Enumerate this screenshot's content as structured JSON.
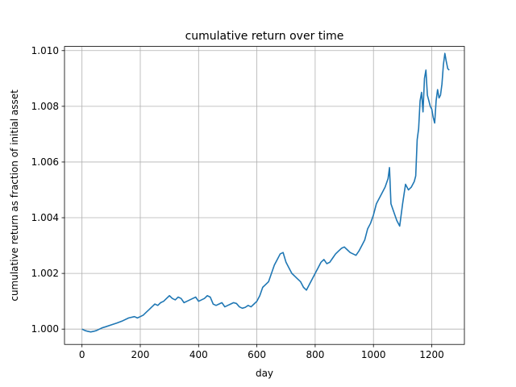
{
  "chart_data": {
    "type": "line",
    "title": "cumulative return over time",
    "xlabel": "day",
    "ylabel": "cumulative return as fraction of initial asset",
    "xlim": [
      -60,
      1312
    ],
    "ylim": [
      0.99945,
      1.01015
    ],
    "xticks": [
      0,
      200,
      400,
      600,
      800,
      1000,
      1200
    ],
    "yticks": [
      1.0,
      1.002,
      1.004,
      1.006,
      1.008,
      1.01
    ],
    "xtick_labels": [
      "0",
      "200",
      "400",
      "600",
      "800",
      "1000",
      "1200"
    ],
    "ytick_labels": [
      "1.000",
      "1.002",
      "1.004",
      "1.006",
      "1.008",
      "1.010"
    ],
    "grid": true,
    "series": [
      {
        "color": "#1f77b4",
        "x": [
          0,
          10,
          20,
          30,
          40,
          50,
          60,
          70,
          80,
          100,
          120,
          140,
          160,
          180,
          190,
          200,
          210,
          220,
          230,
          240,
          250,
          260,
          270,
          280,
          290,
          300,
          310,
          320,
          330,
          340,
          350,
          360,
          370,
          380,
          390,
          400,
          410,
          420,
          430,
          440,
          450,
          460,
          470,
          480,
          490,
          500,
          510,
          520,
          530,
          540,
          550,
          560,
          570,
          580,
          590,
          600,
          610,
          620,
          630,
          640,
          650,
          660,
          670,
          680,
          690,
          700,
          710,
          720,
          730,
          740,
          750,
          760,
          770,
          780,
          790,
          800,
          810,
          820,
          830,
          840,
          850,
          860,
          870,
          880,
          890,
          900,
          910,
          920,
          930,
          940,
          950,
          960,
          970,
          980,
          990,
          1000,
          1010,
          1020,
          1030,
          1040,
          1050,
          1055,
          1060,
          1070,
          1080,
          1090,
          1100,
          1110,
          1120,
          1130,
          1140,
          1145,
          1150,
          1155,
          1160,
          1165,
          1170,
          1175,
          1180,
          1185,
          1190,
          1195,
          1200,
          1205,
          1210,
          1215,
          1220,
          1225,
          1230,
          1235,
          1240,
          1245,
          1250,
          1255,
          1260
        ],
        "y": [
          1.0,
          0.99995,
          0.99992,
          0.9999,
          0.99992,
          0.99995,
          1.0,
          1.00005,
          1.00008,
          1.00015,
          1.00022,
          1.0003,
          1.0004,
          1.00045,
          1.0004,
          1.00045,
          1.0005,
          1.0006,
          1.0007,
          1.0008,
          1.0009,
          1.00085,
          1.00095,
          1.001,
          1.0011,
          1.0012,
          1.0011,
          1.00105,
          1.00115,
          1.0011,
          1.00095,
          1.001,
          1.00105,
          1.0011,
          1.00115,
          1.001,
          1.00105,
          1.0011,
          1.0012,
          1.00115,
          1.0009,
          1.00085,
          1.0009,
          1.00095,
          1.0008,
          1.00085,
          1.0009,
          1.00095,
          1.00092,
          1.0008,
          1.00075,
          1.00078,
          1.00085,
          1.0008,
          1.0009,
          1.001,
          1.0012,
          1.0015,
          1.0016,
          1.0017,
          1.002,
          1.0023,
          1.0025,
          1.0027,
          1.00275,
          1.0024,
          1.0022,
          1.002,
          1.0019,
          1.0018,
          1.0017,
          1.0015,
          1.0014,
          1.0016,
          1.0018,
          1.002,
          1.0022,
          1.0024,
          1.0025,
          1.00235,
          1.0024,
          1.00255,
          1.0027,
          1.0028,
          1.0029,
          1.00295,
          1.00285,
          1.00275,
          1.0027,
          1.00265,
          1.0028,
          1.003,
          1.0032,
          1.0036,
          1.0038,
          1.0041,
          1.0045,
          1.0047,
          1.0049,
          1.0051,
          1.0054,
          1.0058,
          1.0045,
          1.0042,
          1.0039,
          1.0037,
          1.0045,
          1.0052,
          1.005,
          1.0051,
          1.0053,
          1.0055,
          1.0068,
          1.0072,
          1.0082,
          1.0085,
          1.0078,
          1.009,
          1.0093,
          1.0084,
          1.0082,
          1.008,
          1.0079,
          1.0076,
          1.0074,
          1.0082,
          1.0086,
          1.0083,
          1.0084,
          1.0088,
          1.0095,
          1.0099,
          1.0096,
          1.00935,
          1.0093
        ]
      }
    ]
  }
}
